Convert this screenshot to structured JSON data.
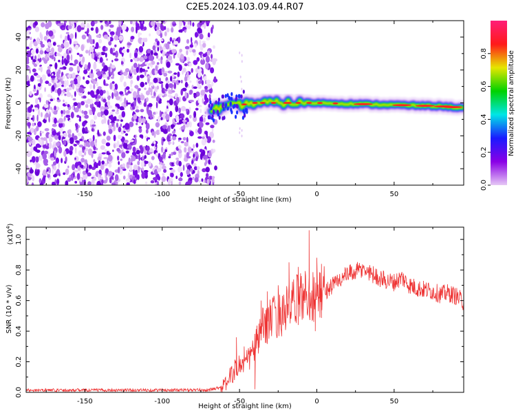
{
  "title": "C2E5.2024.103.09.44.R07",
  "chart_data": [
    {
      "type": "heatmap",
      "xlabel": "Height of straight line (km)",
      "ylabel": "Frequency (Hz)",
      "xlim": [
        -188,
        95
      ],
      "ylim": [
        -50,
        50
      ],
      "xticks": [
        -150,
        -100,
        -50,
        0,
        50
      ],
      "yticks": [
        -40,
        -20,
        0,
        20,
        40
      ],
      "noise_region_x": [
        -188,
        -68
      ],
      "signal_region_x": [
        -68,
        95
      ],
      "signal_band_hz": [
        -3,
        3
      ],
      "signal_center_hz": [
        {
          "x": -68,
          "y": -4
        },
        {
          "x": -55,
          "y": -2
        },
        {
          "x": -40,
          "y": 0
        },
        {
          "x": -20,
          "y": 0
        },
        {
          "x": 0,
          "y": 0
        },
        {
          "x": 40,
          "y": -1
        },
        {
          "x": 80,
          "y": -2
        },
        {
          "x": 95,
          "y": -3
        }
      ],
      "colorbar": {
        "label": "Normalized spectral amplitude",
        "ticks": [
          "0.0",
          "0.2",
          "0.4",
          "0.6",
          "0.8"
        ],
        "range": [
          0,
          1
        ],
        "colormap": [
          "#e6c8f5",
          "#8a00e6",
          "#1a1aff",
          "#00e6e6",
          "#00d200",
          "#e6e600",
          "#ff1a1a",
          "#ff1e78"
        ]
      }
    },
    {
      "type": "line",
      "xlabel": "Height of straight line (km)",
      "ylabel": "SNR (10 * v/v)",
      "multiplier_base": "(x10",
      "multiplier_exp": "4",
      "multiplier_close": ")",
      "xlim": [
        -188,
        95
      ],
      "ylim": [
        0,
        1.08
      ],
      "xticks": [
        -150,
        -100,
        -50,
        0,
        50
      ],
      "yticks": [
        "0.0",
        "0.2",
        "0.4",
        "0.6",
        "0.8",
        "1.0"
      ],
      "color": "#ee3333",
      "envelope": [
        {
          "x": -188,
          "y": 0.015
        },
        {
          "x": -70,
          "y": 0.015
        },
        {
          "x": -60,
          "y": 0.04
        },
        {
          "x": -55,
          "y": 0.12
        },
        {
          "x": -50,
          "y": 0.18
        },
        {
          "x": -45,
          "y": 0.2
        },
        {
          "x": -40,
          "y": 0.3
        },
        {
          "x": -35,
          "y": 0.42
        },
        {
          "x": -30,
          "y": 0.48
        },
        {
          "x": -25,
          "y": 0.5
        },
        {
          "x": -20,
          "y": 0.54
        },
        {
          "x": -15,
          "y": 0.58
        },
        {
          "x": -10,
          "y": 0.63
        },
        {
          "x": -5,
          "y": 0.64
        },
        {
          "x": 0,
          "y": 0.62
        },
        {
          "x": 5,
          "y": 0.66
        },
        {
          "x": 10,
          "y": 0.7
        },
        {
          "x": 15,
          "y": 0.74
        },
        {
          "x": 20,
          "y": 0.77
        },
        {
          "x": 25,
          "y": 0.79
        },
        {
          "x": 30,
          "y": 0.8
        },
        {
          "x": 35,
          "y": 0.78
        },
        {
          "x": 40,
          "y": 0.75
        },
        {
          "x": 45,
          "y": 0.73
        },
        {
          "x": 50,
          "y": 0.72
        },
        {
          "x": 55,
          "y": 0.75
        },
        {
          "x": 60,
          "y": 0.7
        },
        {
          "x": 65,
          "y": 0.68
        },
        {
          "x": 70,
          "y": 0.67
        },
        {
          "x": 75,
          "y": 0.66
        },
        {
          "x": 80,
          "y": 0.64
        },
        {
          "x": 85,
          "y": 0.65
        },
        {
          "x": 90,
          "y": 0.63
        },
        {
          "x": 95,
          "y": 0.59
        }
      ],
      "spikes": [
        {
          "x": -52,
          "y": 0.36
        },
        {
          "x": -47,
          "y": 0.3
        },
        {
          "x": -40,
          "y": 0.02
        },
        {
          "x": -36,
          "y": 0.6
        },
        {
          "x": -32,
          "y": 0.66
        },
        {
          "x": -25,
          "y": 0.7
        },
        {
          "x": -18,
          "y": 0.85
        },
        {
          "x": -12,
          "y": 0.82
        },
        {
          "x": -5,
          "y": 1.06
        },
        {
          "x": -1,
          "y": 0.4
        },
        {
          "x": 0,
          "y": 0.88
        },
        {
          "x": 3,
          "y": 0.84
        }
      ]
    }
  ]
}
